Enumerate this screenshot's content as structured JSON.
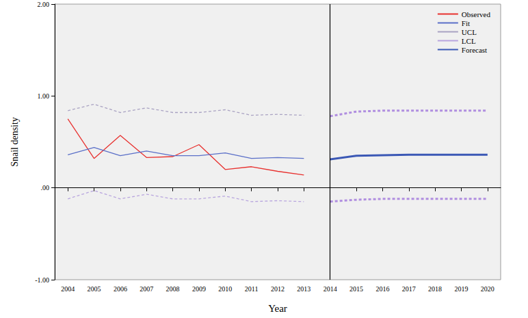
{
  "chart_data": {
    "type": "line",
    "x_label": "Year",
    "y_label": "Snail density",
    "categories": [
      "2004",
      "2005",
      "2006",
      "2007",
      "2008",
      "2009",
      "2010",
      "2011",
      "2012",
      "2013",
      "2014",
      "2015",
      "2016",
      "2017",
      "2018",
      "2019",
      "2020"
    ],
    "ylim": [
      -1,
      2
    ],
    "yticks": [
      {
        "value": -1,
        "label": "-1.00"
      },
      {
        "value": 0,
        "label": ".00"
      },
      {
        "value": 1,
        "label": "1.00"
      },
      {
        "value": 2,
        "label": "2.00"
      }
    ],
    "grid": false,
    "legend": "upper right",
    "vline": "2014",
    "series": [
      {
        "name": "Observed",
        "color": "#e8312f",
        "line_style": "solid",
        "values": [
          0.75,
          0.32,
          0.57,
          0.33,
          0.34,
          0.47,
          0.2,
          0.23,
          0.18,
          0.14,
          null,
          null,
          null,
          null,
          null,
          null,
          null
        ]
      },
      {
        "name": "Fit",
        "color": "#5a6fc8",
        "line_style": "solid",
        "values": [
          0.36,
          0.44,
          0.35,
          0.4,
          0.35,
          0.35,
          0.38,
          0.32,
          0.33,
          0.32,
          null,
          null,
          null,
          null,
          null,
          null,
          null
        ]
      },
      {
        "name": "UCL",
        "color": "#a9a2c2",
        "line_style": "dashed",
        "values": [
          0.84,
          0.91,
          0.82,
          0.87,
          0.82,
          0.82,
          0.85,
          0.79,
          0.8,
          0.79,
          null,
          null,
          null,
          null,
          null,
          null,
          null
        ]
      },
      {
        "name": "LCL",
        "color": "#b8a5de",
        "line_style": "dashed",
        "values": [
          -0.12,
          -0.03,
          -0.12,
          -0.07,
          -0.12,
          -0.12,
          -0.09,
          -0.15,
          -0.14,
          -0.15,
          null,
          null,
          null,
          null,
          null,
          null,
          null
        ]
      },
      {
        "name": "Forecast",
        "color": "#3b58b5",
        "line_style": "thick",
        "values": [
          null,
          null,
          null,
          null,
          null,
          null,
          null,
          null,
          null,
          null,
          0.31,
          0.35,
          0.355,
          0.36,
          0.36,
          0.36,
          0.36
        ]
      },
      {
        "name": "UCL",
        "color": "#b08ee0",
        "line_style": "thickdashed",
        "values": [
          null,
          null,
          null,
          null,
          null,
          null,
          null,
          null,
          null,
          null,
          0.78,
          0.83,
          0.84,
          0.84,
          0.84,
          0.84,
          0.84
        ]
      },
      {
        "name": "LCL",
        "color": "#b08ee0",
        "line_style": "thickdashed",
        "values": [
          null,
          null,
          null,
          null,
          null,
          null,
          null,
          null,
          null,
          null,
          -0.15,
          -0.13,
          -0.12,
          -0.12,
          -0.12,
          -0.12,
          -0.12
        ]
      }
    ]
  }
}
